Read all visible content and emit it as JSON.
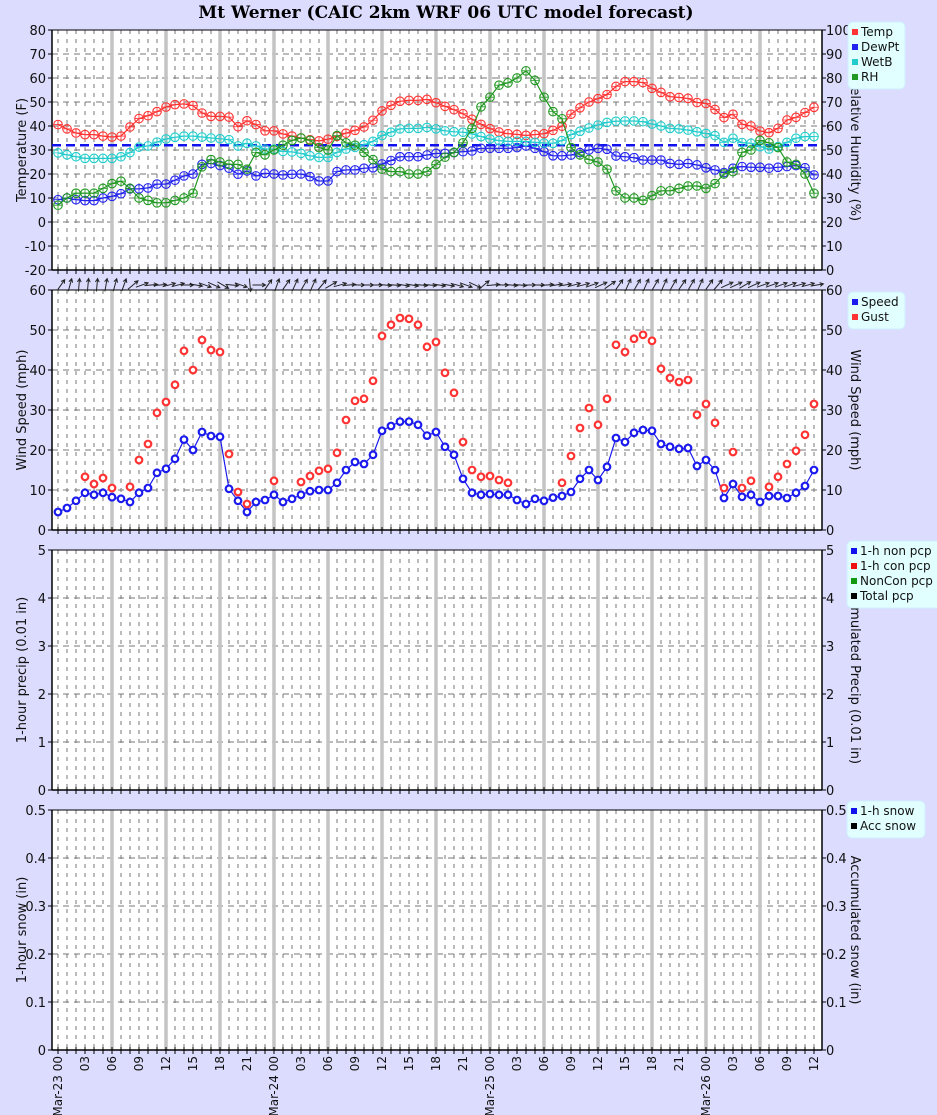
{
  "title": "Mt Werner (CAIC 2km WRF 06 UTC model forecast)",
  "times": [
    "Mar-23 00",
    "Mar-23 01",
    "Mar-23 02",
    "Mar-23 03",
    "Mar-23 04",
    "Mar-23 05",
    "Mar-23 06",
    "Mar-23 07",
    "Mar-23 08",
    "Mar-23 09",
    "Mar-23 10",
    "Mar-23 11",
    "Mar-23 12",
    "Mar-23 13",
    "Mar-23 14",
    "Mar-23 15",
    "Mar-23 16",
    "Mar-23 17",
    "Mar-23 18",
    "Mar-23 19",
    "Mar-23 20",
    "Mar-23 21",
    "Mar-23 22",
    "Mar-23 23",
    "Mar-24 00",
    "Mar-24 01",
    "Mar-24 02",
    "Mar-24 03",
    "Mar-24 04",
    "Mar-24 05",
    "Mar-24 06",
    "Mar-24 07",
    "Mar-24 08",
    "Mar-24 09",
    "Mar-24 10",
    "Mar-24 11",
    "Mar-24 12",
    "Mar-24 13",
    "Mar-24 14",
    "Mar-24 15",
    "Mar-24 16",
    "Mar-24 17",
    "Mar-24 18",
    "Mar-24 19",
    "Mar-24 20",
    "Mar-24 21",
    "Mar-24 22",
    "Mar-24 23",
    "Mar-25 00",
    "Mar-25 01",
    "Mar-25 02",
    "Mar-25 03",
    "Mar-25 04",
    "Mar-25 05",
    "Mar-25 06",
    "Mar-25 07",
    "Mar-25 08",
    "Mar-25 09",
    "Mar-25 10",
    "Mar-25 11",
    "Mar-25 12",
    "Mar-25 13",
    "Mar-25 14",
    "Mar-25 15",
    "Mar-25 16",
    "Mar-25 17",
    "Mar-25 18",
    "Mar-25 19",
    "Mar-25 20",
    "Mar-25 21",
    "Mar-25 22",
    "Mar-25 23",
    "Mar-26 00",
    "Mar-26 01",
    "Mar-26 02",
    "Mar-26 03",
    "Mar-26 04",
    "Mar-26 05",
    "Mar-26 06",
    "Mar-26 07",
    "Mar-26 08",
    "Mar-26 09",
    "Mar-26 10",
    "Mar-26 11",
    "Mar-26 12"
  ],
  "x_tick_labels": [
    "Mar-23 00",
    "03",
    "06",
    "09",
    "12",
    "15",
    "18",
    "21",
    "Mar-24 00",
    "03",
    "06",
    "09",
    "12",
    "15",
    "18",
    "21",
    "Mar-25 00",
    "03",
    "06",
    "09",
    "12",
    "15",
    "18",
    "21",
    "Mar-26 00",
    "03",
    "06",
    "09",
    "12"
  ],
  "chart_data": [
    {
      "type": "line",
      "ylabel": "Temperature (F)",
      "ylim": [
        -20,
        80
      ],
      "yticks": [
        "80",
        "70",
        "60",
        "50",
        "40",
        "30",
        "20",
        "10",
        "0",
        "-10",
        "-20"
      ],
      "y2label": "Relative Humidity (%)",
      "y2lim": [
        0,
        100
      ],
      "y2ticks": [
        "100",
        "90",
        "80",
        "70",
        "60",
        "50",
        "40",
        "30",
        "20",
        "10",
        "0"
      ],
      "freezing_line_f": 32,
      "freezing_line_color": "#1111ee",
      "grid": true,
      "legend": "right-top",
      "series": [
        {
          "name": "Temp",
          "color": "#ff3333",
          "axis": "left",
          "values": [
            40.6,
            38.8,
            37.1,
            36.4,
            36.4,
            35.8,
            35.4,
            35.8,
            39.6,
            43.1,
            44.3,
            46,
            47.9,
            48.9,
            49.2,
            48.5,
            45.4,
            44,
            44,
            43.7,
            39.7,
            42.2,
            40.6,
            38,
            38,
            36.7,
            35.8,
            35,
            34.3,
            33.8,
            34.5,
            35.7,
            37,
            38.2,
            39.6,
            42.4,
            46.3,
            48.6,
            50.3,
            50.7,
            50.7,
            51.1,
            49.7,
            48.2,
            46.8,
            45.1,
            42.8,
            40.7,
            38.9,
            37.5,
            36.8,
            36.5,
            36.1,
            36.4,
            36.8,
            38.2,
            39.9,
            44.9,
            47.6,
            50,
            51.4,
            53.1,
            56.5,
            58.5,
            58.5,
            58.1,
            55.7,
            54,
            52.2,
            51.9,
            51.5,
            49.8,
            49.4,
            46.9,
            43.5,
            44.9,
            40.7,
            40,
            37.9,
            37.2,
            39,
            42.5,
            43.6,
            45.6,
            47.8
          ]
        },
        {
          "name": "DewPt",
          "color": "#2222ee",
          "axis": "left",
          "values": [
            9.3,
            10,
            9.3,
            8.9,
            8.9,
            10,
            10.7,
            11.8,
            13.8,
            13.8,
            14.2,
            15.8,
            15.8,
            17.4,
            19.2,
            20,
            24,
            24.4,
            23.5,
            22.4,
            19.9,
            21.3,
            19.2,
            20.3,
            20,
            19.6,
            19.9,
            20,
            18.9,
            17.1,
            17.1,
            21,
            21.7,
            21.7,
            22.4,
            22.6,
            24.2,
            25.6,
            27.2,
            27.2,
            27.2,
            27.9,
            28.6,
            28.6,
            28.9,
            29.3,
            29.6,
            30.7,
            30.7,
            30.7,
            30.7,
            31,
            31.7,
            30.7,
            29.3,
            27.6,
            27.6,
            27.9,
            28.9,
            30,
            30.7,
            30.3,
            27.5,
            27.2,
            26.8,
            25.8,
            25.8,
            25.8,
            24.4,
            24,
            24.4,
            23.8,
            22.6,
            21.7,
            20.6,
            22.4,
            23.1,
            22.8,
            22.8,
            22.4,
            22.8,
            23.1,
            23.5,
            22.6,
            19.6
          ]
        },
        {
          "name": "WetB",
          "color": "#22cccc",
          "axis": "left",
          "values": [
            28.8,
            28,
            27.2,
            26.5,
            26.5,
            26.5,
            26.5,
            27.2,
            28.9,
            31.2,
            31.7,
            33.3,
            34.6,
            35.3,
            35.8,
            35.8,
            35.4,
            35,
            34.7,
            34.3,
            31.7,
            32.8,
            31.7,
            30.4,
            30.4,
            29.4,
            29.2,
            28.6,
            27.6,
            26.9,
            26.9,
            29,
            30.4,
            31.1,
            32.2,
            33.6,
            36,
            37.4,
            38.8,
            39,
            39,
            39.4,
            38.8,
            38,
            37.6,
            37.4,
            36.7,
            35.6,
            34.6,
            33.9,
            33.6,
            33.6,
            33.6,
            33.2,
            32.9,
            32.8,
            33.9,
            36.4,
            37.8,
            39.2,
            40.4,
            41.5,
            42,
            42.1,
            42.1,
            41.8,
            40.8,
            40,
            39,
            38.8,
            38.3,
            37.6,
            36.9,
            36,
            33.2,
            34.9,
            33.1,
            32.8,
            31.4,
            30.4,
            31.4,
            33.2,
            34.9,
            35.6,
            35.6
          ]
        },
        {
          "name": "RH",
          "color": "#229922",
          "axis": "right",
          "values": [
            27,
            30,
            32,
            32,
            32,
            34,
            36,
            37,
            34,
            30,
            29,
            28,
            28,
            29,
            30,
            32,
            43,
            46,
            45,
            44,
            44,
            42,
            49,
            48,
            50,
            52,
            54,
            55,
            54,
            51,
            50,
            56,
            53,
            52,
            49,
            46,
            42,
            41,
            41,
            40,
            40,
            41,
            44,
            47,
            49,
            53,
            59,
            68,
            72,
            77,
            78,
            80,
            83,
            79,
            72,
            66,
            63,
            51,
            48,
            46,
            45,
            42,
            33,
            30,
            30,
            29,
            31,
            33,
            33,
            34,
            35,
            35,
            34,
            36,
            40,
            41,
            49,
            50,
            54,
            53,
            51,
            45,
            44,
            40,
            32
          ]
        }
      ]
    },
    {
      "type": "scatter",
      "ylabel": "Wind Speed (mph)",
      "ylim": [
        0,
        60
      ],
      "yticks": [
        "60",
        "50",
        "40",
        "30",
        "20",
        "10",
        "0"
      ],
      "y2label": "Wind Speed (mph)",
      "y2lim": [
        0,
        60
      ],
      "y2ticks": [
        "60",
        "50",
        "40",
        "30",
        "20",
        "10",
        "0"
      ],
      "grid": true,
      "legend": "right-top",
      "wind_direction_deg": [
        215,
        195,
        185,
        185,
        185,
        190,
        195,
        200,
        230,
        250,
        265,
        265,
        255,
        255,
        270,
        280,
        290,
        295,
        300,
        275,
        290,
        355,
        270,
        215,
        200,
        215,
        205,
        210,
        205,
        220,
        240,
        255,
        265,
        270,
        270,
        270,
        275,
        275,
        280,
        280,
        275,
        275,
        280,
        280,
        285,
        290,
        295,
        230,
        265,
        270,
        275,
        275,
        270,
        270,
        265,
        260,
        260,
        255,
        255,
        250,
        245,
        235,
        215,
        205,
        210,
        205,
        210,
        205,
        210,
        215,
        210,
        205,
        215,
        220,
        245,
        245,
        240,
        245,
        250,
        250,
        250,
        250,
        255,
        255,
        260
      ],
      "series": [
        {
          "name": "Speed",
          "color": "#1a1aee",
          "connected": true,
          "values": [
            4.5,
            5.5,
            7.3,
            9.3,
            8.8,
            9.3,
            8.2,
            7.8,
            7,
            9.3,
            10.5,
            14.3,
            15.3,
            17.8,
            22.6,
            20,
            24.5,
            23.5,
            23.3,
            10.3,
            7.3,
            4.5,
            7,
            7.5,
            8.8,
            7,
            7.8,
            8.8,
            9.7,
            10,
            10,
            11.8,
            15,
            17,
            16.5,
            18.8,
            24.8,
            26,
            27.1,
            27.1,
            26.3,
            23.6,
            24.5,
            20.8,
            18.8,
            12.8,
            9.3,
            8.8,
            9,
            8.8,
            8.8,
            7.5,
            6.5,
            7.8,
            7.3,
            8.1,
            8.5,
            9.5,
            12.8,
            15,
            12.5,
            15.8,
            23,
            22,
            24.3,
            25,
            24.8,
            21.5,
            20.8,
            20.3,
            20.5,
            16,
            17.5,
            15,
            8,
            11.5,
            8.3,
            8.8,
            7,
            8.5,
            8.5,
            8,
            9.3,
            11,
            15
          ]
        },
        {
          "name": "Gust",
          "color": "#ff3333",
          "connected": false,
          "values": [
            null,
            null,
            null,
            13.3,
            11.5,
            13,
            10.5,
            null,
            10.8,
            17.5,
            21.5,
            29.3,
            32,
            36.3,
            44.8,
            40,
            47.5,
            45,
            44.5,
            19,
            9.5,
            6.5,
            null,
            null,
            12.3,
            null,
            null,
            12,
            13.5,
            14.8,
            15.3,
            19.3,
            27.5,
            32.3,
            32.8,
            37.3,
            48.5,
            51.3,
            53,
            52.8,
            51.3,
            45.8,
            47,
            39.3,
            34.3,
            22,
            15,
            13.3,
            13.5,
            12.5,
            11.8,
            null,
            null,
            null,
            null,
            null,
            11.8,
            18.5,
            25.5,
            30.5,
            26.3,
            32.8,
            46.3,
            44.5,
            47.8,
            48.8,
            47.3,
            40.3,
            38,
            37,
            37.5,
            28.8,
            31.5,
            26.8,
            10.5,
            19.5,
            10.5,
            12.3,
            null,
            10.8,
            13.3,
            16.5,
            19.8,
            23.8,
            31.5
          ]
        }
      ]
    },
    {
      "type": "bar",
      "ylabel": "1-hour precip (0.01 in)",
      "ylim": [
        0,
        5
      ],
      "yticks": [
        "5",
        "4",
        "3",
        "2",
        "1",
        "0"
      ],
      "y2label": "Accumulated Precip (0.01 in)",
      "y2lim": [
        0,
        5
      ],
      "y2ticks": [
        "5",
        "4",
        "3",
        "2",
        "1",
        "0"
      ],
      "grid": true,
      "legend": "right-top",
      "series": [
        {
          "name": "1-h non pcp",
          "color": "#1111ee",
          "values": []
        },
        {
          "name": "1-h con pcp",
          "color": "#ee1111",
          "values": []
        },
        {
          "name": "NonCon pcp",
          "color": "#119911",
          "values": []
        },
        {
          "name": "Total pcp",
          "color": "#000000",
          "values": []
        }
      ]
    },
    {
      "type": "bar",
      "ylabel": "1-hour snow (in)",
      "ylim": [
        0,
        0.5
      ],
      "yticks": [
        "0.5",
        "0.4",
        "0.3",
        "0.2",
        "0.1",
        "0"
      ],
      "y2label": "Accumulated snow (in)",
      "y2lim": [
        0,
        0.5
      ],
      "y2ticks": [
        "0.5",
        "0.4",
        "0.3",
        "0.2",
        "0.1",
        "0"
      ],
      "grid": true,
      "legend": "right-top",
      "series": [
        {
          "name": "1-h snow",
          "color": "#1111ee",
          "values": []
        },
        {
          "name": "Acc snow",
          "color": "#000000",
          "values": []
        }
      ]
    }
  ]
}
